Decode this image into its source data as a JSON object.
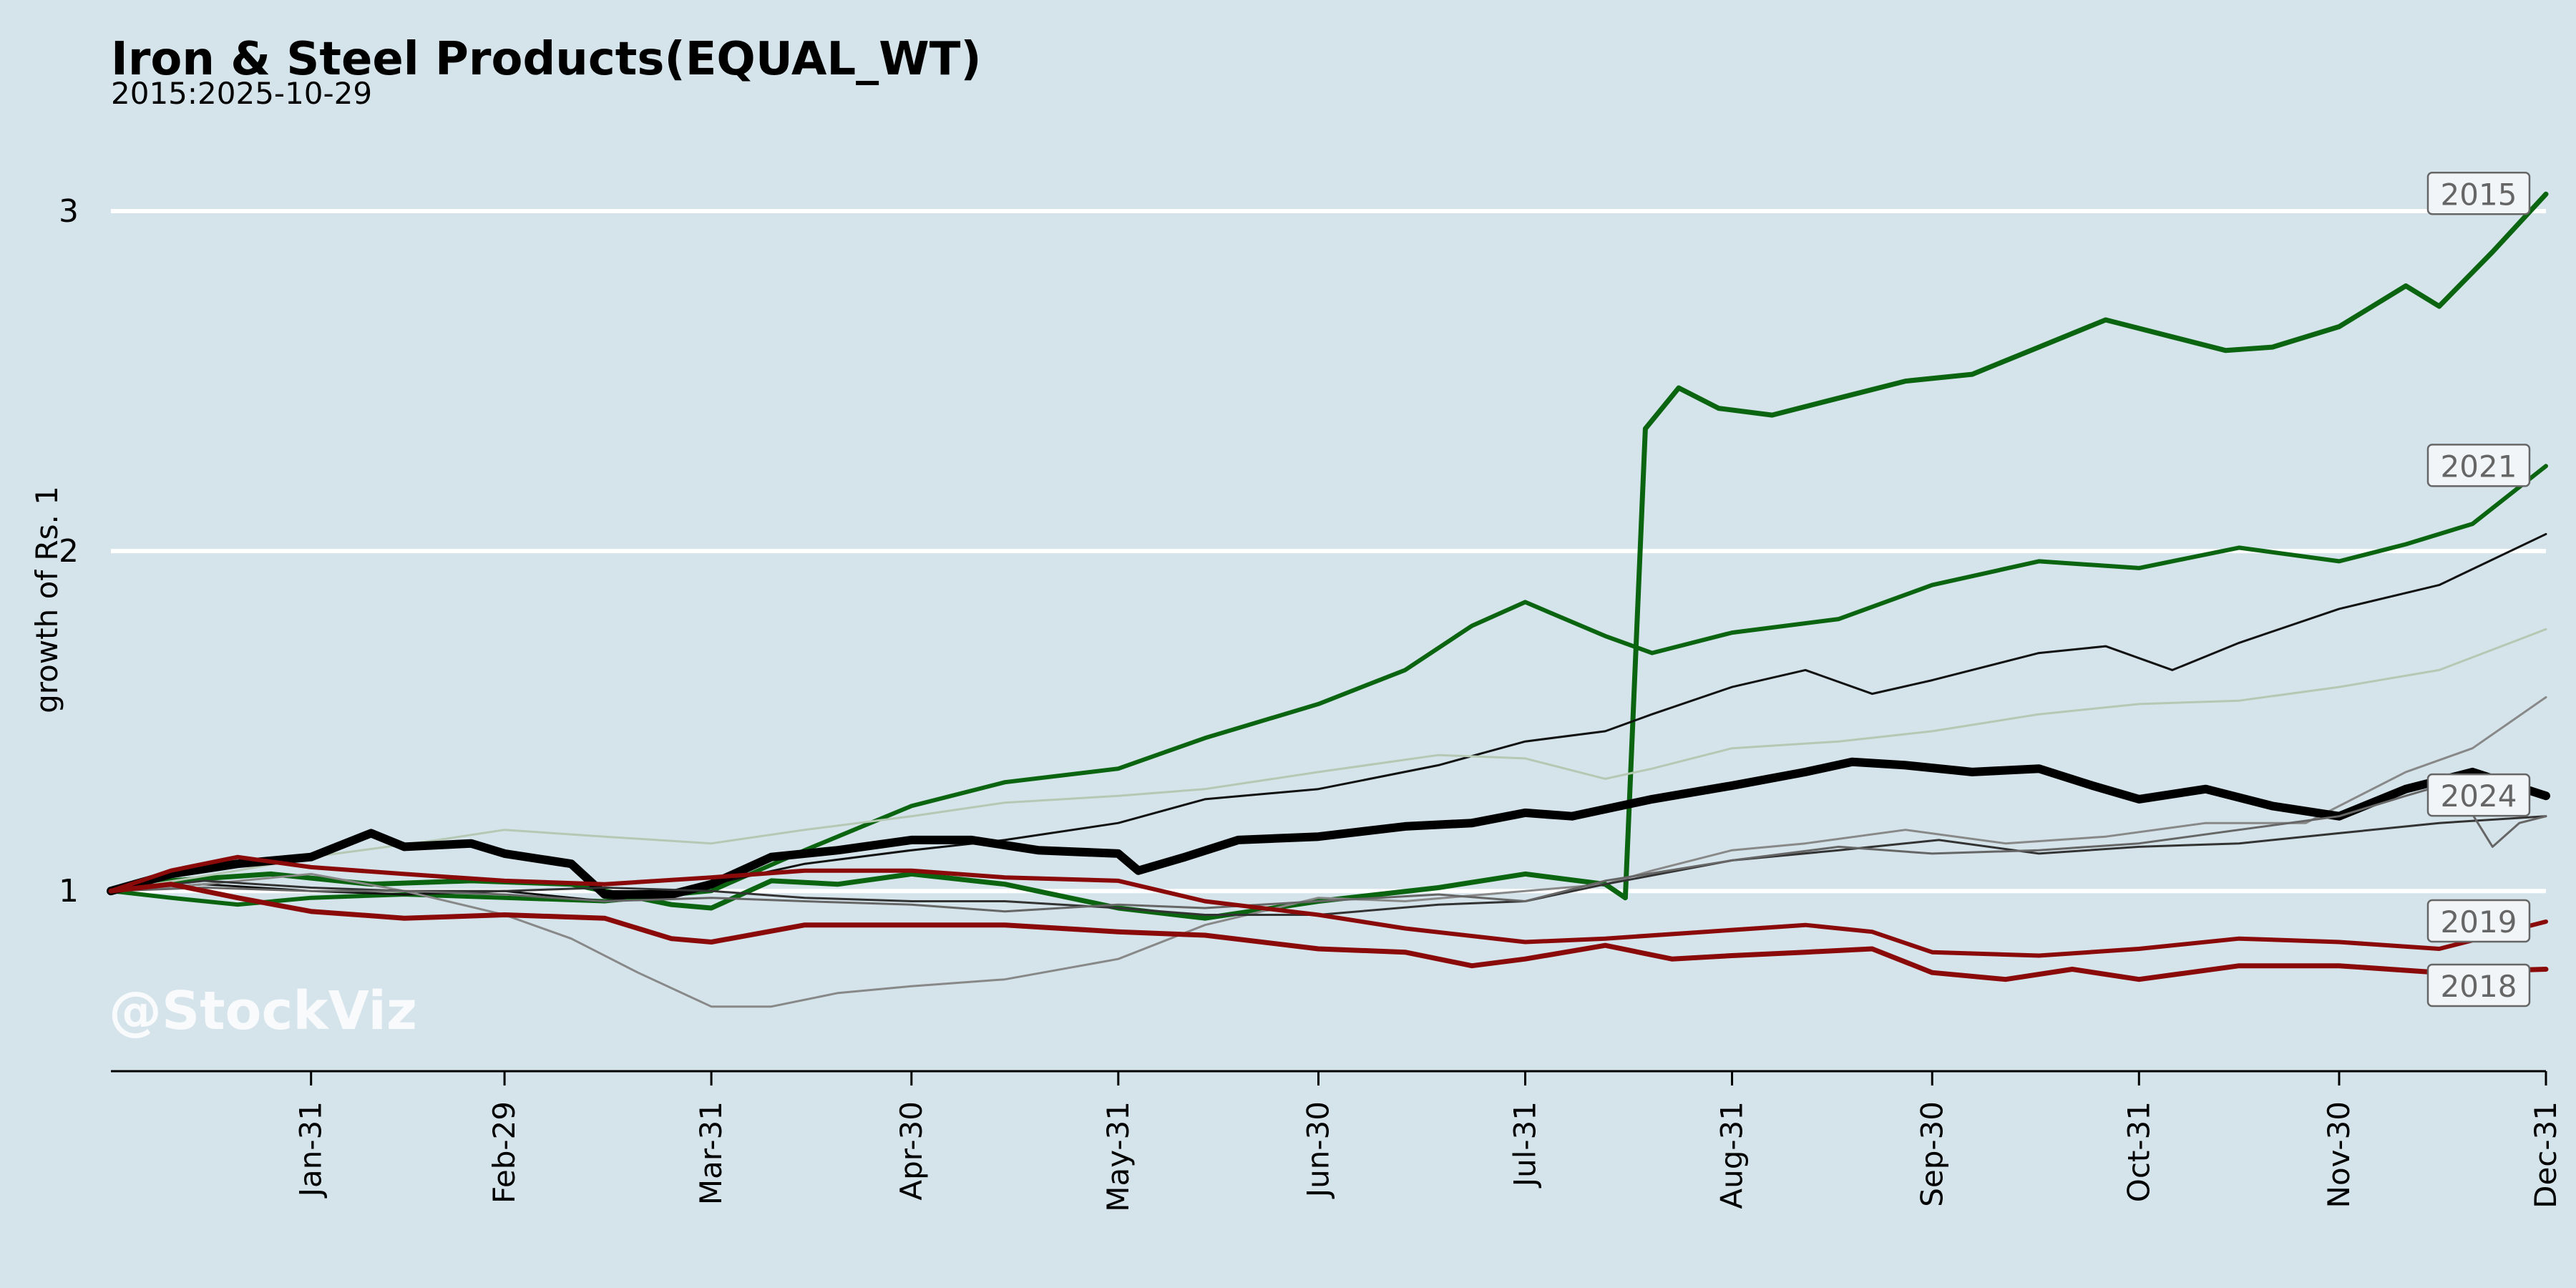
{
  "chart_data": {
    "type": "line",
    "title": "Iron & Steel Products(EQUAL_WT)",
    "subtitle": "2015:2025-10-29",
    "xlabel": "",
    "ylabel": "growth of Rs. 1",
    "watermark": "@StockViz",
    "x_ticks": [
      "Jan-31",
      "Feb-29",
      "Mar-31",
      "Apr-30",
      "May-31",
      "Jun-30",
      "Jul-31",
      "Aug-31",
      "Sep-30",
      "Oct-31",
      "Nov-30",
      "Dec-31"
    ],
    "x_tick_days": [
      31,
      60,
      91,
      121,
      152,
      182,
      213,
      244,
      274,
      305,
      335,
      366
    ],
    "x_range": [
      1,
      366
    ],
    "y_ticks": [
      1,
      2,
      3
    ],
    "ylim": [
      0.47,
      3.2
    ],
    "grid": "horizontal-white",
    "legend": "end-labels",
    "series": [
      {
        "name": "2015",
        "color": "#0a6410",
        "width": 7,
        "opacity": 1,
        "labeled": true,
        "points": [
          [
            1,
            1.0
          ],
          [
            10,
            1.03
          ],
          [
            25,
            1.05
          ],
          [
            40,
            1.02
          ],
          [
            55,
            1.03
          ],
          [
            70,
            1.02
          ],
          [
            85,
            0.96
          ],
          [
            91,
            0.95
          ],
          [
            100,
            1.03
          ],
          [
            110,
            1.02
          ],
          [
            121,
            1.05
          ],
          [
            135,
            1.02
          ],
          [
            152,
            0.95
          ],
          [
            165,
            0.92
          ],
          [
            182,
            0.97
          ],
          [
            200,
            1.01
          ],
          [
            213,
            1.05
          ],
          [
            225,
            1.02
          ],
          [
            228,
            0.98
          ],
          [
            231,
            2.36
          ],
          [
            236,
            2.48
          ],
          [
            242,
            2.42
          ],
          [
            250,
            2.4
          ],
          [
            260,
            2.45
          ],
          [
            270,
            2.5
          ],
          [
            280,
            2.52
          ],
          [
            290,
            2.6
          ],
          [
            300,
            2.68
          ],
          [
            310,
            2.63
          ],
          [
            318,
            2.59
          ],
          [
            325,
            2.6
          ],
          [
            335,
            2.66
          ],
          [
            345,
            2.78
          ],
          [
            350,
            2.72
          ],
          [
            358,
            2.88
          ],
          [
            366,
            3.05
          ]
        ]
      },
      {
        "name": "2021",
        "color": "#0a6410",
        "width": 6,
        "opacity": 1,
        "labeled": true,
        "points": [
          [
            1,
            1.0
          ],
          [
            10,
            0.98
          ],
          [
            20,
            0.96
          ],
          [
            31,
            0.98
          ],
          [
            45,
            0.99
          ],
          [
            60,
            0.98
          ],
          [
            75,
            0.97
          ],
          [
            91,
            1.0
          ],
          [
            105,
            1.12
          ],
          [
            121,
            1.25
          ],
          [
            135,
            1.32
          ],
          [
            152,
            1.36
          ],
          [
            165,
            1.45
          ],
          [
            182,
            1.55
          ],
          [
            195,
            1.65
          ],
          [
            205,
            1.78
          ],
          [
            213,
            1.85
          ],
          [
            225,
            1.75
          ],
          [
            232,
            1.7
          ],
          [
            244,
            1.76
          ],
          [
            260,
            1.8
          ],
          [
            274,
            1.9
          ],
          [
            290,
            1.97
          ],
          [
            305,
            1.95
          ],
          [
            320,
            2.01
          ],
          [
            335,
            1.97
          ],
          [
            345,
            2.02
          ],
          [
            355,
            2.08
          ],
          [
            366,
            2.25
          ]
        ]
      },
      {
        "name": "",
        "color": "#111111",
        "width": 3,
        "opacity": 1,
        "labeled": false,
        "points": [
          [
            1,
            1.0
          ],
          [
            15,
            1.02
          ],
          [
            31,
            1.0
          ],
          [
            45,
            0.99
          ],
          [
            60,
            1.0
          ],
          [
            75,
            0.97
          ],
          [
            91,
            1.02
          ],
          [
            105,
            1.08
          ],
          [
            121,
            1.12
          ],
          [
            135,
            1.15
          ],
          [
            152,
            1.2
          ],
          [
            165,
            1.27
          ],
          [
            182,
            1.3
          ],
          [
            200,
            1.37
          ],
          [
            213,
            1.44
          ],
          [
            225,
            1.47
          ],
          [
            232,
            1.52
          ],
          [
            244,
            1.6
          ],
          [
            255,
            1.65
          ],
          [
            265,
            1.58
          ],
          [
            274,
            1.62
          ],
          [
            290,
            1.7
          ],
          [
            300,
            1.72
          ],
          [
            310,
            1.65
          ],
          [
            320,
            1.73
          ],
          [
            335,
            1.83
          ],
          [
            350,
            1.9
          ],
          [
            366,
            2.05
          ]
        ]
      },
      {
        "name": "",
        "color": "#b5c8b3",
        "width": 3,
        "opacity": 1,
        "labeled": false,
        "points": [
          [
            1,
            1.0
          ],
          [
            20,
            1.06
          ],
          [
            31,
            1.1
          ],
          [
            50,
            1.15
          ],
          [
            60,
            1.18
          ],
          [
            75,
            1.16
          ],
          [
            91,
            1.14
          ],
          [
            105,
            1.18
          ],
          [
            121,
            1.22
          ],
          [
            135,
            1.26
          ],
          [
            152,
            1.28
          ],
          [
            165,
            1.3
          ],
          [
            182,
            1.35
          ],
          [
            200,
            1.4
          ],
          [
            213,
            1.39
          ],
          [
            225,
            1.33
          ],
          [
            232,
            1.36
          ],
          [
            244,
            1.42
          ],
          [
            260,
            1.44
          ],
          [
            274,
            1.47
          ],
          [
            290,
            1.52
          ],
          [
            305,
            1.55
          ],
          [
            320,
            1.56
          ],
          [
            335,
            1.6
          ],
          [
            350,
            1.65
          ],
          [
            366,
            1.77
          ]
        ]
      },
      {
        "name": "",
        "color": "#888888",
        "width": 3,
        "opacity": 1,
        "labeled": false,
        "points": [
          [
            1,
            1.0
          ],
          [
            15,
            1.02
          ],
          [
            31,
            1.05
          ],
          [
            45,
            1.0
          ],
          [
            60,
            0.93
          ],
          [
            70,
            0.86
          ],
          [
            80,
            0.76
          ],
          [
            91,
            0.66
          ],
          [
            100,
            0.66
          ],
          [
            110,
            0.7
          ],
          [
            121,
            0.72
          ],
          [
            135,
            0.74
          ],
          [
            152,
            0.8
          ],
          [
            165,
            0.9
          ],
          [
            182,
            0.98
          ],
          [
            195,
            0.97
          ],
          [
            213,
            1.0
          ],
          [
            225,
            1.02
          ],
          [
            232,
            1.06
          ],
          [
            244,
            1.12
          ],
          [
            255,
            1.14
          ],
          [
            270,
            1.18
          ],
          [
            285,
            1.14
          ],
          [
            300,
            1.16
          ],
          [
            315,
            1.2
          ],
          [
            330,
            1.2
          ],
          [
            345,
            1.35
          ],
          [
            355,
            1.42
          ],
          [
            366,
            1.57
          ]
        ]
      },
      {
        "name": "2024",
        "color": "#000000",
        "width": 12,
        "opacity": 1,
        "labeled": true,
        "points": [
          [
            1,
            1.0
          ],
          [
            10,
            1.05
          ],
          [
            20,
            1.08
          ],
          [
            31,
            1.1
          ],
          [
            40,
            1.17
          ],
          [
            45,
            1.13
          ],
          [
            55,
            1.14
          ],
          [
            60,
            1.11
          ],
          [
            70,
            1.08
          ],
          [
            75,
            0.99
          ],
          [
            85,
            0.99
          ],
          [
            91,
            1.02
          ],
          [
            100,
            1.1
          ],
          [
            110,
            1.12
          ],
          [
            121,
            1.15
          ],
          [
            130,
            1.15
          ],
          [
            140,
            1.12
          ],
          [
            152,
            1.11
          ],
          [
            155,
            1.06
          ],
          [
            162,
            1.1
          ],
          [
            170,
            1.15
          ],
          [
            182,
            1.16
          ],
          [
            195,
            1.19
          ],
          [
            205,
            1.2
          ],
          [
            213,
            1.23
          ],
          [
            220,
            1.22
          ],
          [
            232,
            1.27
          ],
          [
            244,
            1.31
          ],
          [
            255,
            1.35
          ],
          [
            262,
            1.38
          ],
          [
            270,
            1.37
          ],
          [
            280,
            1.35
          ],
          [
            290,
            1.36
          ],
          [
            298,
            1.31
          ],
          [
            305,
            1.27
          ],
          [
            315,
            1.3
          ],
          [
            325,
            1.25
          ],
          [
            335,
            1.22
          ],
          [
            345,
            1.3
          ],
          [
            355,
            1.35
          ],
          [
            366,
            1.28
          ]
        ]
      },
      {
        "name": "",
        "color": "#333333",
        "width": 3,
        "opacity": 1,
        "labeled": false,
        "points": [
          [
            1,
            1.0
          ],
          [
            15,
            1.03
          ],
          [
            31,
            1.01
          ],
          [
            45,
            1.0
          ],
          [
            60,
            1.0
          ],
          [
            75,
            1.01
          ],
          [
            91,
            1.0
          ],
          [
            105,
            0.98
          ],
          [
            121,
            0.97
          ],
          [
            135,
            0.97
          ],
          [
            152,
            0.95
          ],
          [
            165,
            0.93
          ],
          [
            182,
            0.93
          ],
          [
            200,
            0.96
          ],
          [
            213,
            0.97
          ],
          [
            225,
            1.02
          ],
          [
            244,
            1.09
          ],
          [
            260,
            1.12
          ],
          [
            275,
            1.15
          ],
          [
            290,
            1.11
          ],
          [
            305,
            1.13
          ],
          [
            320,
            1.14
          ],
          [
            335,
            1.17
          ],
          [
            350,
            1.2
          ],
          [
            366,
            1.22
          ]
        ]
      },
      {
        "name": "",
        "color": "#666666",
        "width": 3,
        "opacity": 1,
        "labeled": false,
        "points": [
          [
            1,
            1.0
          ],
          [
            15,
            1.01
          ],
          [
            31,
            1.0
          ],
          [
            45,
            1.0
          ],
          [
            60,
            0.99
          ],
          [
            75,
            0.97
          ],
          [
            91,
            0.98
          ],
          [
            105,
            0.97
          ],
          [
            121,
            0.96
          ],
          [
            135,
            0.94
          ],
          [
            152,
            0.96
          ],
          [
            165,
            0.95
          ],
          [
            182,
            0.97
          ],
          [
            200,
            0.99
          ],
          [
            213,
            0.97
          ],
          [
            225,
            1.03
          ],
          [
            244,
            1.09
          ],
          [
            260,
            1.13
          ],
          [
            274,
            1.11
          ],
          [
            290,
            1.12
          ],
          [
            305,
            1.14
          ],
          [
            320,
            1.18
          ],
          [
            335,
            1.22
          ],
          [
            345,
            1.28
          ],
          [
            352,
            1.32
          ],
          [
            358,
            1.13
          ],
          [
            362,
            1.2
          ],
          [
            366,
            1.22
          ]
        ]
      },
      {
        "name": "2019",
        "color": "#8a0a0a",
        "width": 6,
        "opacity": 1,
        "labeled": true,
        "points": [
          [
            1,
            1.0
          ],
          [
            10,
            1.06
          ],
          [
            20,
            1.1
          ],
          [
            31,
            1.07
          ],
          [
            45,
            1.05
          ],
          [
            60,
            1.03
          ],
          [
            75,
            1.02
          ],
          [
            91,
            1.04
          ],
          [
            105,
            1.06
          ],
          [
            121,
            1.06
          ],
          [
            135,
            1.04
          ],
          [
            152,
            1.03
          ],
          [
            165,
            0.97
          ],
          [
            182,
            0.93
          ],
          [
            195,
            0.89
          ],
          [
            213,
            0.85
          ],
          [
            225,
            0.86
          ],
          [
            240,
            0.88
          ],
          [
            255,
            0.9
          ],
          [
            265,
            0.88
          ],
          [
            274,
            0.82
          ],
          [
            290,
            0.81
          ],
          [
            305,
            0.83
          ],
          [
            320,
            0.86
          ],
          [
            335,
            0.85
          ],
          [
            350,
            0.83
          ],
          [
            366,
            0.91
          ]
        ]
      },
      {
        "name": "2018",
        "color": "#8a0a0a",
        "width": 7,
        "opacity": 1,
        "labeled": true,
        "points": [
          [
            1,
            1.0
          ],
          [
            10,
            1.02
          ],
          [
            20,
            0.98
          ],
          [
            31,
            0.94
          ],
          [
            45,
            0.92
          ],
          [
            60,
            0.93
          ],
          [
            75,
            0.92
          ],
          [
            85,
            0.86
          ],
          [
            91,
            0.85
          ],
          [
            105,
            0.9
          ],
          [
            121,
            0.9
          ],
          [
            135,
            0.9
          ],
          [
            152,
            0.88
          ],
          [
            165,
            0.87
          ],
          [
            182,
            0.83
          ],
          [
            195,
            0.82
          ],
          [
            205,
            0.78
          ],
          [
            213,
            0.8
          ],
          [
            225,
            0.84
          ],
          [
            235,
            0.8
          ],
          [
            244,
            0.81
          ],
          [
            255,
            0.82
          ],
          [
            265,
            0.83
          ],
          [
            274,
            0.76
          ],
          [
            285,
            0.74
          ],
          [
            295,
            0.77
          ],
          [
            305,
            0.74
          ],
          [
            320,
            0.78
          ],
          [
            335,
            0.78
          ],
          [
            350,
            0.76
          ],
          [
            366,
            0.77
          ]
        ]
      }
    ]
  }
}
